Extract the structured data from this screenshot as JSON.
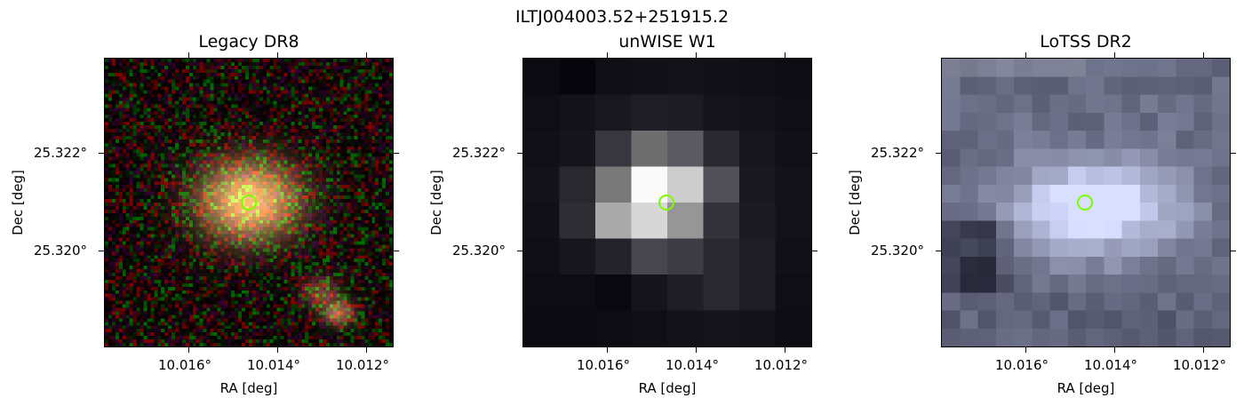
{
  "figure": {
    "suptitle": "ILTJ004003.52+251915.2"
  },
  "panels": [
    {
      "title": "Legacy DR8",
      "x_ticks": [
        "10.016°",
        "10.014°",
        "10.012°"
      ],
      "y_ticks": [
        "25.322°",
        "25.320°"
      ],
      "xlabel": "RA [deg]",
      "ylabel": "Dec [deg]"
    },
    {
      "title": "unWISE W1",
      "x_ticks": [
        "10.016°",
        "10.014°",
        "10.012°"
      ],
      "y_ticks": [
        "25.322°",
        "25.320°"
      ],
      "xlabel": "RA [deg]",
      "ylabel": "Dec [deg]"
    },
    {
      "title": "LoTSS DR2",
      "x_ticks": [
        "10.016°",
        "10.014°",
        "10.012°"
      ],
      "y_ticks": [
        "25.322°",
        "25.320°"
      ],
      "xlabel": "RA [deg]",
      "ylabel": "Dec [deg]"
    }
  ],
  "colors": {
    "marker": "#7cfc00",
    "axes": "#000000"
  }
}
